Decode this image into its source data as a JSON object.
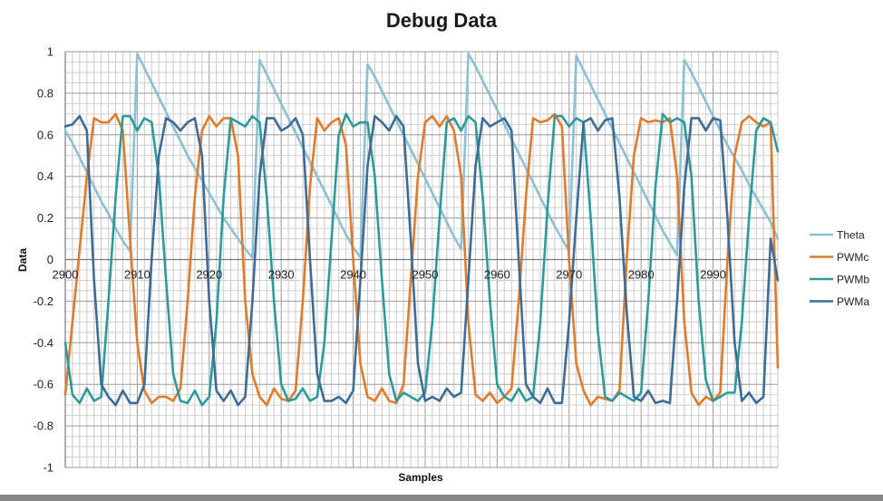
{
  "chart_data": {
    "type": "line",
    "title": "Debug Data",
    "xlabel": "Samples",
    "ylabel": "Data",
    "xlim": [
      2900,
      2999
    ],
    "ylim": [
      -1,
      1
    ],
    "xticks": [
      "2900",
      "2910",
      "2920",
      "2930",
      "2940",
      "2950",
      "2960",
      "2970",
      "2980",
      "2990"
    ],
    "yticks": [
      "1",
      "0.8",
      "0.6",
      "0.4",
      "0.2",
      "0",
      "-0.2",
      "-0.4",
      "-0.6",
      "-0.8",
      "-1"
    ],
    "grid": true,
    "legend_position": "right",
    "series": [
      {
        "name": "Theta",
        "color": "#8cc0d2",
        "x_start": 2900,
        "x_step": 1,
        "values": [
          0.62,
          0.56,
          0.49,
          0.42,
          0.35,
          0.28,
          0.22,
          0.15,
          0.09,
          0.04,
          0.99,
          0.92,
          0.85,
          0.78,
          0.71,
          0.64,
          0.57,
          0.5,
          0.44,
          0.38,
          0.32,
          0.26,
          0.2,
          0.15,
          0.1,
          0.05,
          0.01,
          0.96,
          0.89,
          0.82,
          0.75,
          0.68,
          0.61,
          0.54,
          0.47,
          0.4,
          0.33,
          0.26,
          0.19,
          0.12,
          0.06,
          0.01,
          0.94,
          0.88,
          0.81,
          0.74,
          0.67,
          0.6,
          0.53,
          0.46,
          0.39,
          0.32,
          0.25,
          0.18,
          0.11,
          0.05,
          0.99,
          0.93,
          0.86,
          0.79,
          0.72,
          0.65,
          0.58,
          0.51,
          0.44,
          0.37,
          0.3,
          0.23,
          0.16,
          0.1,
          0.04,
          0.98,
          0.91,
          0.84,
          0.77,
          0.7,
          0.63,
          0.56,
          0.49,
          0.42,
          0.35,
          0.28,
          0.21,
          0.14,
          0.08,
          0.02,
          0.96,
          0.9,
          0.83,
          0.76,
          0.69,
          0.62,
          0.55,
          0.49,
          0.43,
          0.36,
          0.3,
          0.24,
          0.18,
          0.1
        ]
      },
      {
        "name": "PWMc",
        "color": "#e07b2c",
        "x_start": 2900,
        "x_step": 1,
        "values": [
          -0.65,
          -0.3,
          0.05,
          0.4,
          0.68,
          0.66,
          0.66,
          0.7,
          0.62,
          0.1,
          -0.4,
          -0.63,
          -0.69,
          -0.66,
          -0.66,
          -0.68,
          -0.62,
          -0.2,
          0.3,
          0.62,
          0.69,
          0.64,
          0.68,
          0.68,
          0.5,
          -0.2,
          -0.55,
          -0.66,
          -0.7,
          -0.62,
          -0.67,
          -0.68,
          -0.63,
          -0.2,
          0.35,
          0.68,
          0.62,
          0.66,
          0.68,
          0.55,
          0.0,
          -0.5,
          -0.66,
          -0.68,
          -0.62,
          -0.68,
          -0.69,
          -0.6,
          -0.1,
          0.4,
          0.66,
          0.69,
          0.64,
          0.69,
          0.62,
          0.4,
          -0.3,
          -0.65,
          -0.68,
          -0.64,
          -0.69,
          -0.66,
          -0.62,
          -0.2,
          0.3,
          0.68,
          0.66,
          0.67,
          0.7,
          0.64,
          0.0,
          -0.5,
          -0.63,
          -0.7,
          -0.66,
          -0.67,
          -0.68,
          -0.63,
          0.0,
          0.5,
          0.68,
          0.66,
          0.67,
          0.66,
          0.68,
          0.4,
          -0.3,
          -0.64,
          -0.7,
          -0.66,
          -0.68,
          -0.64,
          0.0,
          0.5,
          0.66,
          0.69,
          0.66,
          0.64,
          0.66,
          -0.52
        ]
      },
      {
        "name": "PWMb",
        "color": "#2e9a9c",
        "x_start": 2900,
        "x_step": 1,
        "values": [
          -0.4,
          -0.65,
          -0.69,
          -0.62,
          -0.68,
          -0.66,
          -0.2,
          0.3,
          0.69,
          0.69,
          0.62,
          0.68,
          0.66,
          0.4,
          -0.1,
          -0.55,
          -0.68,
          -0.69,
          -0.63,
          -0.7,
          -0.66,
          -0.3,
          0.3,
          0.68,
          0.66,
          0.64,
          0.69,
          0.66,
          0.3,
          -0.2,
          -0.6,
          -0.68,
          -0.67,
          -0.62,
          -0.68,
          -0.66,
          -0.4,
          0.1,
          0.6,
          0.7,
          0.64,
          0.66,
          0.66,
          0.4,
          -0.1,
          -0.55,
          -0.68,
          -0.64,
          -0.66,
          -0.68,
          -0.64,
          -0.3,
          0.2,
          0.66,
          0.68,
          0.62,
          0.69,
          0.66,
          0.3,
          -0.2,
          -0.6,
          -0.66,
          -0.68,
          -0.62,
          -0.68,
          -0.66,
          -0.3,
          0.25,
          0.69,
          0.69,
          0.64,
          0.68,
          0.66,
          0.2,
          -0.35,
          -0.66,
          -0.68,
          -0.64,
          -0.66,
          -0.68,
          -0.64,
          -0.2,
          0.35,
          0.7,
          0.66,
          0.68,
          0.66,
          0.4,
          -0.2,
          -0.58,
          -0.68,
          -0.66,
          -0.64,
          -0.64,
          -0.3,
          0.2,
          0.62,
          0.68,
          0.66,
          0.52
        ]
      },
      {
        "name": "PWMa",
        "color": "#3f6c96",
        "x_start": 2900,
        "x_step": 1,
        "values": [
          0.64,
          0.65,
          0.69,
          0.62,
          -0.1,
          -0.6,
          -0.66,
          -0.7,
          -0.63,
          -0.69,
          -0.69,
          -0.6,
          0.0,
          0.5,
          0.68,
          0.66,
          0.62,
          0.66,
          0.68,
          0.5,
          -0.2,
          -0.63,
          -0.68,
          -0.63,
          -0.7,
          -0.66,
          -0.2,
          0.4,
          0.68,
          0.68,
          0.62,
          0.64,
          0.68,
          0.6,
          0.0,
          -0.55,
          -0.68,
          -0.68,
          -0.66,
          -0.69,
          -0.63,
          -0.1,
          0.45,
          0.69,
          0.66,
          0.62,
          0.69,
          0.64,
          0.1,
          -0.5,
          -0.68,
          -0.66,
          -0.68,
          -0.62,
          -0.66,
          -0.64,
          -0.1,
          0.45,
          0.68,
          0.64,
          0.66,
          0.68,
          0.62,
          0.0,
          -0.6,
          -0.66,
          -0.69,
          -0.62,
          -0.69,
          -0.69,
          -0.3,
          0.2,
          0.66,
          0.68,
          0.62,
          0.67,
          0.68,
          0.3,
          -0.25,
          -0.66,
          -0.68,
          -0.63,
          -0.69,
          -0.68,
          -0.69,
          -0.2,
          0.35,
          0.68,
          0.68,
          0.62,
          0.68,
          0.67,
          0.2,
          -0.4,
          -0.68,
          -0.64,
          -0.69,
          -0.66,
          0.1,
          -0.1
        ]
      }
    ]
  }
}
